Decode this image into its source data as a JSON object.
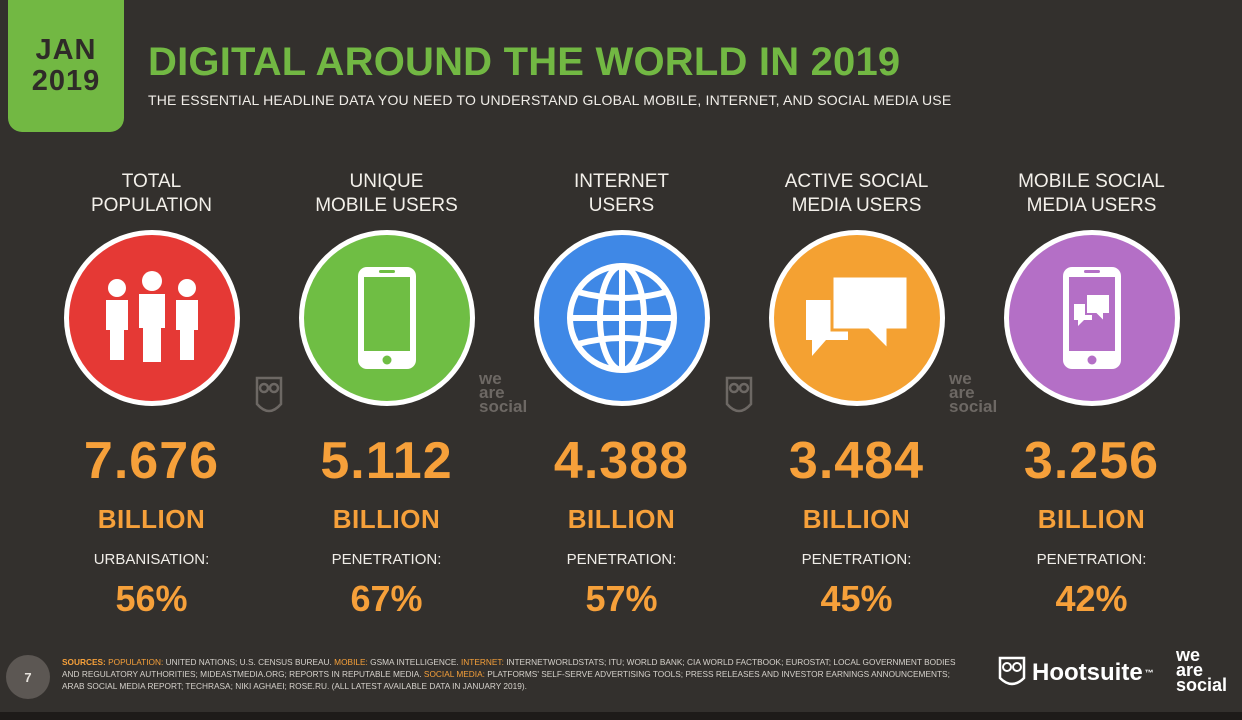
{
  "badge": {
    "month": "JAN",
    "year": "2019"
  },
  "title": "DIGITAL AROUND THE WORLD IN 2019",
  "subtitle": "THE ESSENTIAL HEADLINE DATA YOU NEED TO UNDERSTAND GLOBAL MOBILE, INTERNET, AND SOCIAL MEDIA USE",
  "stats": [
    {
      "label_1": "TOTAL",
      "label_2": "POPULATION",
      "icon": "people-icon",
      "color": "#e53935",
      "value": "7.676",
      "unit": "BILLION",
      "metric_label": "URBANISATION:",
      "metric_value": "56%"
    },
    {
      "label_1": "UNIQUE",
      "label_2": "MOBILE USERS",
      "icon": "mobile-phone-icon",
      "color": "#6fbe44",
      "value": "5.112",
      "unit": "BILLION",
      "metric_label": "PENETRATION:",
      "metric_value": "67%"
    },
    {
      "label_1": "INTERNET",
      "label_2": "USERS",
      "icon": "globe-icon",
      "color": "#3f88e6",
      "value": "4.388",
      "unit": "BILLION",
      "metric_label": "PENETRATION:",
      "metric_value": "57%"
    },
    {
      "label_1": "ACTIVE SOCIAL",
      "label_2": "MEDIA USERS",
      "icon": "speech-bubbles-icon",
      "color": "#f4a132",
      "value": "3.484",
      "unit": "BILLION",
      "metric_label": "PENETRATION:",
      "metric_value": "45%"
    },
    {
      "label_1": "MOBILE SOCIAL",
      "label_2": "MEDIA USERS",
      "icon": "mobile-chat-icon",
      "color": "#b46fc6",
      "value": "3.256",
      "unit": "BILLION",
      "metric_label": "PENETRATION:",
      "metric_value": "42%"
    }
  ],
  "watermark": {
    "was_1": "we",
    "was_2": "are",
    "was_3": "social"
  },
  "footer": {
    "page": "7",
    "sources_lead": "SOURCES:",
    "population_key": "POPULATION:",
    "population_text": "UNITED NATIONS; U.S. CENSUS BUREAU.",
    "mobile_key": "MOBILE:",
    "mobile_text": "GSMA INTELLIGENCE.",
    "internet_key": "INTERNET:",
    "internet_text": "INTERNETWORLDSTATS; ITU; WORLD BANK; CIA WORLD FACTBOOK; EUROSTAT; LOCAL GOVERNMENT BODIES AND REGULATORY AUTHORITIES; MIDEASTMEDIA.ORG; REPORTS IN REPUTABLE MEDIA.",
    "social_key": "SOCIAL MEDIA:",
    "social_text": "PLATFORMS' SELF-SERVE ADVERTISING TOOLS; PRESS RELEASES AND INVESTOR EARNINGS ANNOUNCEMENTS; ARAB SOCIAL MEDIA REPORT; TECHRASA; NIKI AGHAEI; ROSE.RU. (ALL LATEST AVAILABLE DATA IN JANUARY 2019).",
    "hootsuite": "Hootsuite",
    "tm": "™",
    "was_1": "we",
    "was_2": "are",
    "was_3": "social"
  },
  "colors": {
    "accent_green": "#72b843",
    "accent_orange": "#f6a03a",
    "background": "#33302d"
  }
}
